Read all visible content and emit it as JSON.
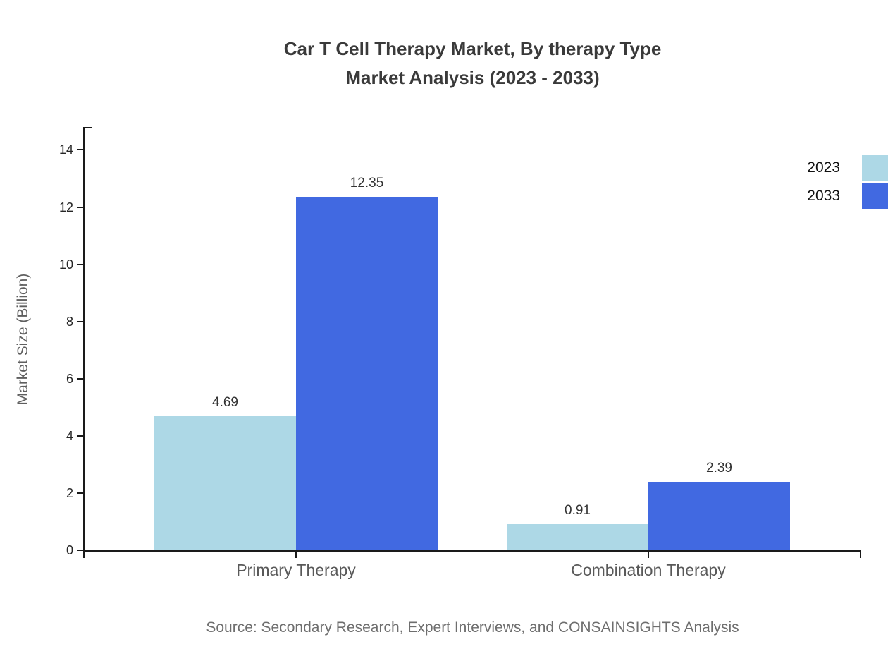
{
  "chart_data": {
    "type": "bar",
    "title_lines": [
      "Car T Cell Therapy Market, By therapy Type",
      "Market Analysis (2023 - 2033)"
    ],
    "categories": [
      "Primary Therapy",
      "Combination Therapy"
    ],
    "series": [
      {
        "name": "2023",
        "color": "#ADD8E6",
        "values": [
          4.69,
          0.91
        ]
      },
      {
        "name": "2033",
        "color": "#4169E1",
        "values": [
          12.35,
          2.39
        ]
      }
    ],
    "xlabel": "",
    "ylabel": "Market Size (Billion)",
    "ylim": [
      0,
      14.8
    ],
    "yticks": [
      0,
      2,
      4,
      6,
      8,
      10,
      12,
      14
    ],
    "grid": false,
    "legend_position": "upper-right-outside",
    "value_labels": true,
    "value_label_format": "2-decimals",
    "axis_color": "#1a1a1a",
    "title_color": "#3a3a3a",
    "source": "Source: Secondary Research, Expert Interviews, and CONSAINSIGHTS Analysis"
  }
}
